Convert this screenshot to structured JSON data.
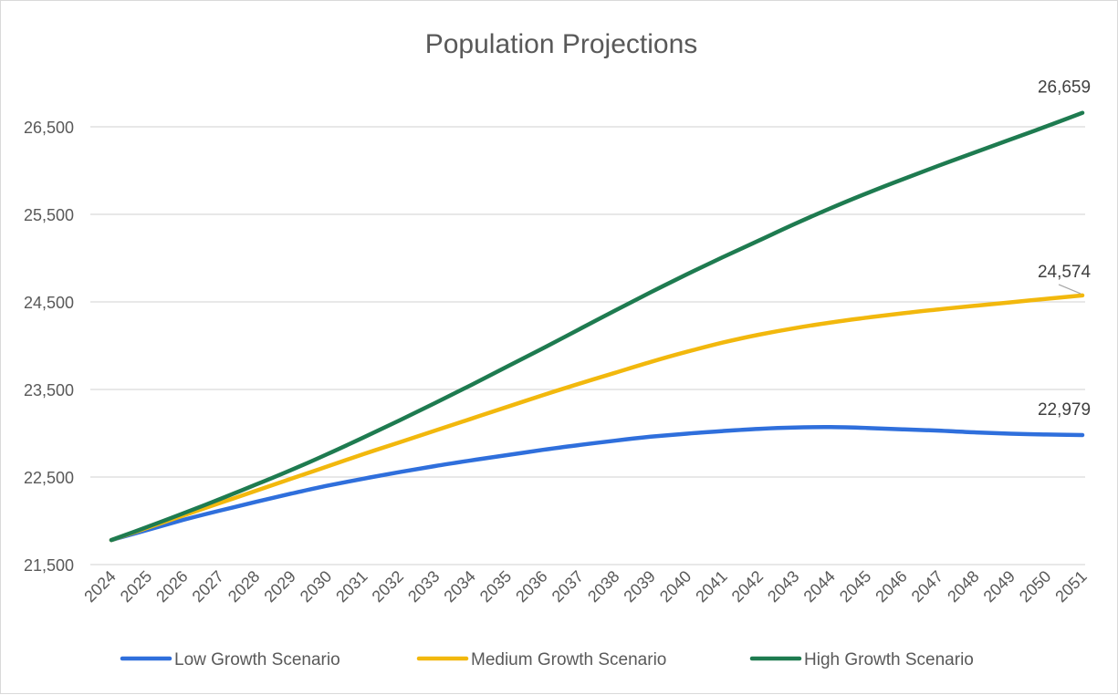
{
  "chart_data": {
    "type": "line",
    "title": "Population Projections",
    "xlabel": "",
    "ylabel": "",
    "x": [
      "2024",
      "2025",
      "2026",
      "2027",
      "2028",
      "2029",
      "2030",
      "2031",
      "2032",
      "2033",
      "2034",
      "2035",
      "2036",
      "2037",
      "2038",
      "2039",
      "2040",
      "2041",
      "2042",
      "2043",
      "2044",
      "2045",
      "2046",
      "2047",
      "2048",
      "2049",
      "2050",
      "2051"
    ],
    "ylim": [
      21500,
      27000
    ],
    "yticks": [
      21500,
      22500,
      23500,
      24500,
      25500,
      26500
    ],
    "ytick_labels": [
      "21,500",
      "22,500",
      "23,500",
      "24,500",
      "25,500",
      "26,500"
    ],
    "grid": true,
    "legend_position": "bottom",
    "series": [
      {
        "name": "Low Growth Scenario",
        "color": "#2f6fdc",
        "values": [
          21780,
          21895,
          22010,
          22115,
          22215,
          22310,
          22400,
          22480,
          22555,
          22625,
          22690,
          22750,
          22810,
          22865,
          22915,
          22960,
          22995,
          23025,
          23050,
          23065,
          23070,
          23060,
          23045,
          23030,
          23010,
          22995,
          22985,
          22979
        ],
        "end_label": "22,979"
      },
      {
        "name": "Medium Growth Scenario",
        "color": "#f2b80d",
        "values": [
          21780,
          21920,
          22060,
          22200,
          22340,
          22480,
          22620,
          22760,
          22895,
          23030,
          23165,
          23300,
          23435,
          23565,
          23690,
          23815,
          23930,
          24035,
          24125,
          24200,
          24265,
          24320,
          24370,
          24415,
          24455,
          24495,
          24535,
          24574
        ],
        "end_label": "24,574"
      },
      {
        "name": "High Growth Scenario",
        "color": "#1e7b50",
        "values": [
          21780,
          21930,
          22085,
          22245,
          22410,
          22580,
          22760,
          22950,
          23145,
          23345,
          23550,
          23760,
          23970,
          24185,
          24400,
          24610,
          24815,
          25010,
          25200,
          25390,
          25570,
          25740,
          25900,
          26055,
          26205,
          26355,
          26505,
          26659
        ],
        "end_label": "26,659"
      }
    ]
  }
}
